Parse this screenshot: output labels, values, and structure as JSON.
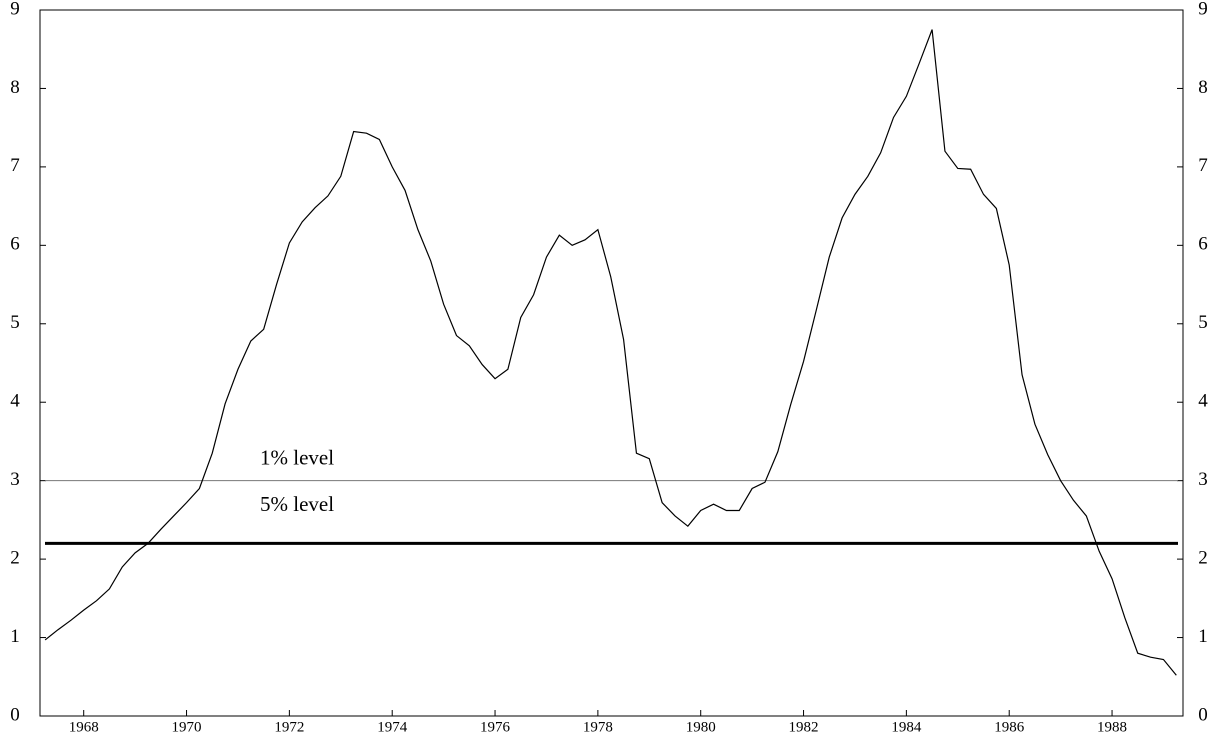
{
  "chart_data": {
    "type": "line",
    "x": [
      1967.25,
      1967.5,
      1967.75,
      1968,
      1968.25,
      1968.5,
      1968.75,
      1969,
      1969.25,
      1969.5,
      1969.75,
      1970,
      1970.25,
      1970.5,
      1970.75,
      1971,
      1971.25,
      1971.5,
      1971.75,
      1972,
      1972.25,
      1972.5,
      1972.75,
      1973,
      1973.25,
      1973.5,
      1973.75,
      1974,
      1974.25,
      1974.5,
      1974.75,
      1975,
      1975.25,
      1975.5,
      1975.75,
      1976,
      1976.25,
      1976.5,
      1976.75,
      1977,
      1977.25,
      1977.5,
      1977.75,
      1978,
      1978.25,
      1978.5,
      1978.75,
      1979,
      1979.25,
      1979.5,
      1979.75,
      1980,
      1980.25,
      1980.5,
      1980.75,
      1981,
      1981.25,
      1981.5,
      1981.75,
      1982,
      1982.25,
      1982.5,
      1982.75,
      1983,
      1983.25,
      1983.5,
      1983.75,
      1984,
      1984.25,
      1984.5,
      1984.75,
      1985,
      1985.25,
      1985.5,
      1985.75,
      1986,
      1986.25,
      1986.5,
      1986.75,
      1987,
      1987.25,
      1987.5,
      1987.75,
      1988,
      1988.25,
      1988.5,
      1988.75,
      1989,
      1989.25
    ],
    "series": [
      {
        "color": "#000000",
        "values": [
          0.97,
          1.1,
          1.22,
          1.35,
          1.47,
          1.62,
          1.9,
          2.08,
          2.2,
          2.38,
          2.55,
          2.72,
          2.9,
          3.35,
          3.98,
          4.42,
          4.78,
          4.93,
          5.5,
          6.03,
          6.3,
          6.48,
          6.63,
          6.88,
          7.45,
          7.43,
          7.35,
          7.0,
          6.7,
          6.2,
          5.8,
          5.25,
          4.85,
          4.72,
          4.48,
          4.3,
          4.42,
          5.08,
          5.37,
          5.85,
          6.13,
          6.0,
          6.07,
          6.2,
          5.6,
          4.8,
          3.35,
          3.28,
          2.72,
          2.55,
          2.42,
          2.62,
          2.7,
          2.62,
          2.62,
          2.9,
          2.98,
          3.37,
          3.97,
          4.52,
          5.18,
          5.85,
          6.35,
          6.65,
          6.88,
          7.18,
          7.63,
          7.9,
          8.32,
          8.75,
          7.2,
          6.98,
          6.97,
          6.65,
          6.47,
          5.75,
          4.35,
          3.72,
          3.33,
          3.0,
          2.75,
          2.55,
          2.1,
          1.75,
          1.25,
          0.8,
          0.75,
          0.72,
          0.52
        ]
      }
    ],
    "hlines": [
      {
        "value": 3,
        "label": "1% level",
        "color": "#777777",
        "width": 1
      },
      {
        "value": 2.2,
        "label": "5% level",
        "color": "#000000",
        "width": 3
      }
    ],
    "xlim": [
      1967.15,
      1989.38
    ],
    "xticks": [
      1968,
      1970,
      1972,
      1974,
      1976,
      1978,
      1980,
      1982,
      1984,
      1986,
      1988
    ],
    "ylim": [
      0,
      9
    ],
    "yticks": [
      0,
      1,
      2,
      3,
      4,
      5,
      6,
      7,
      8,
      9
    ]
  }
}
